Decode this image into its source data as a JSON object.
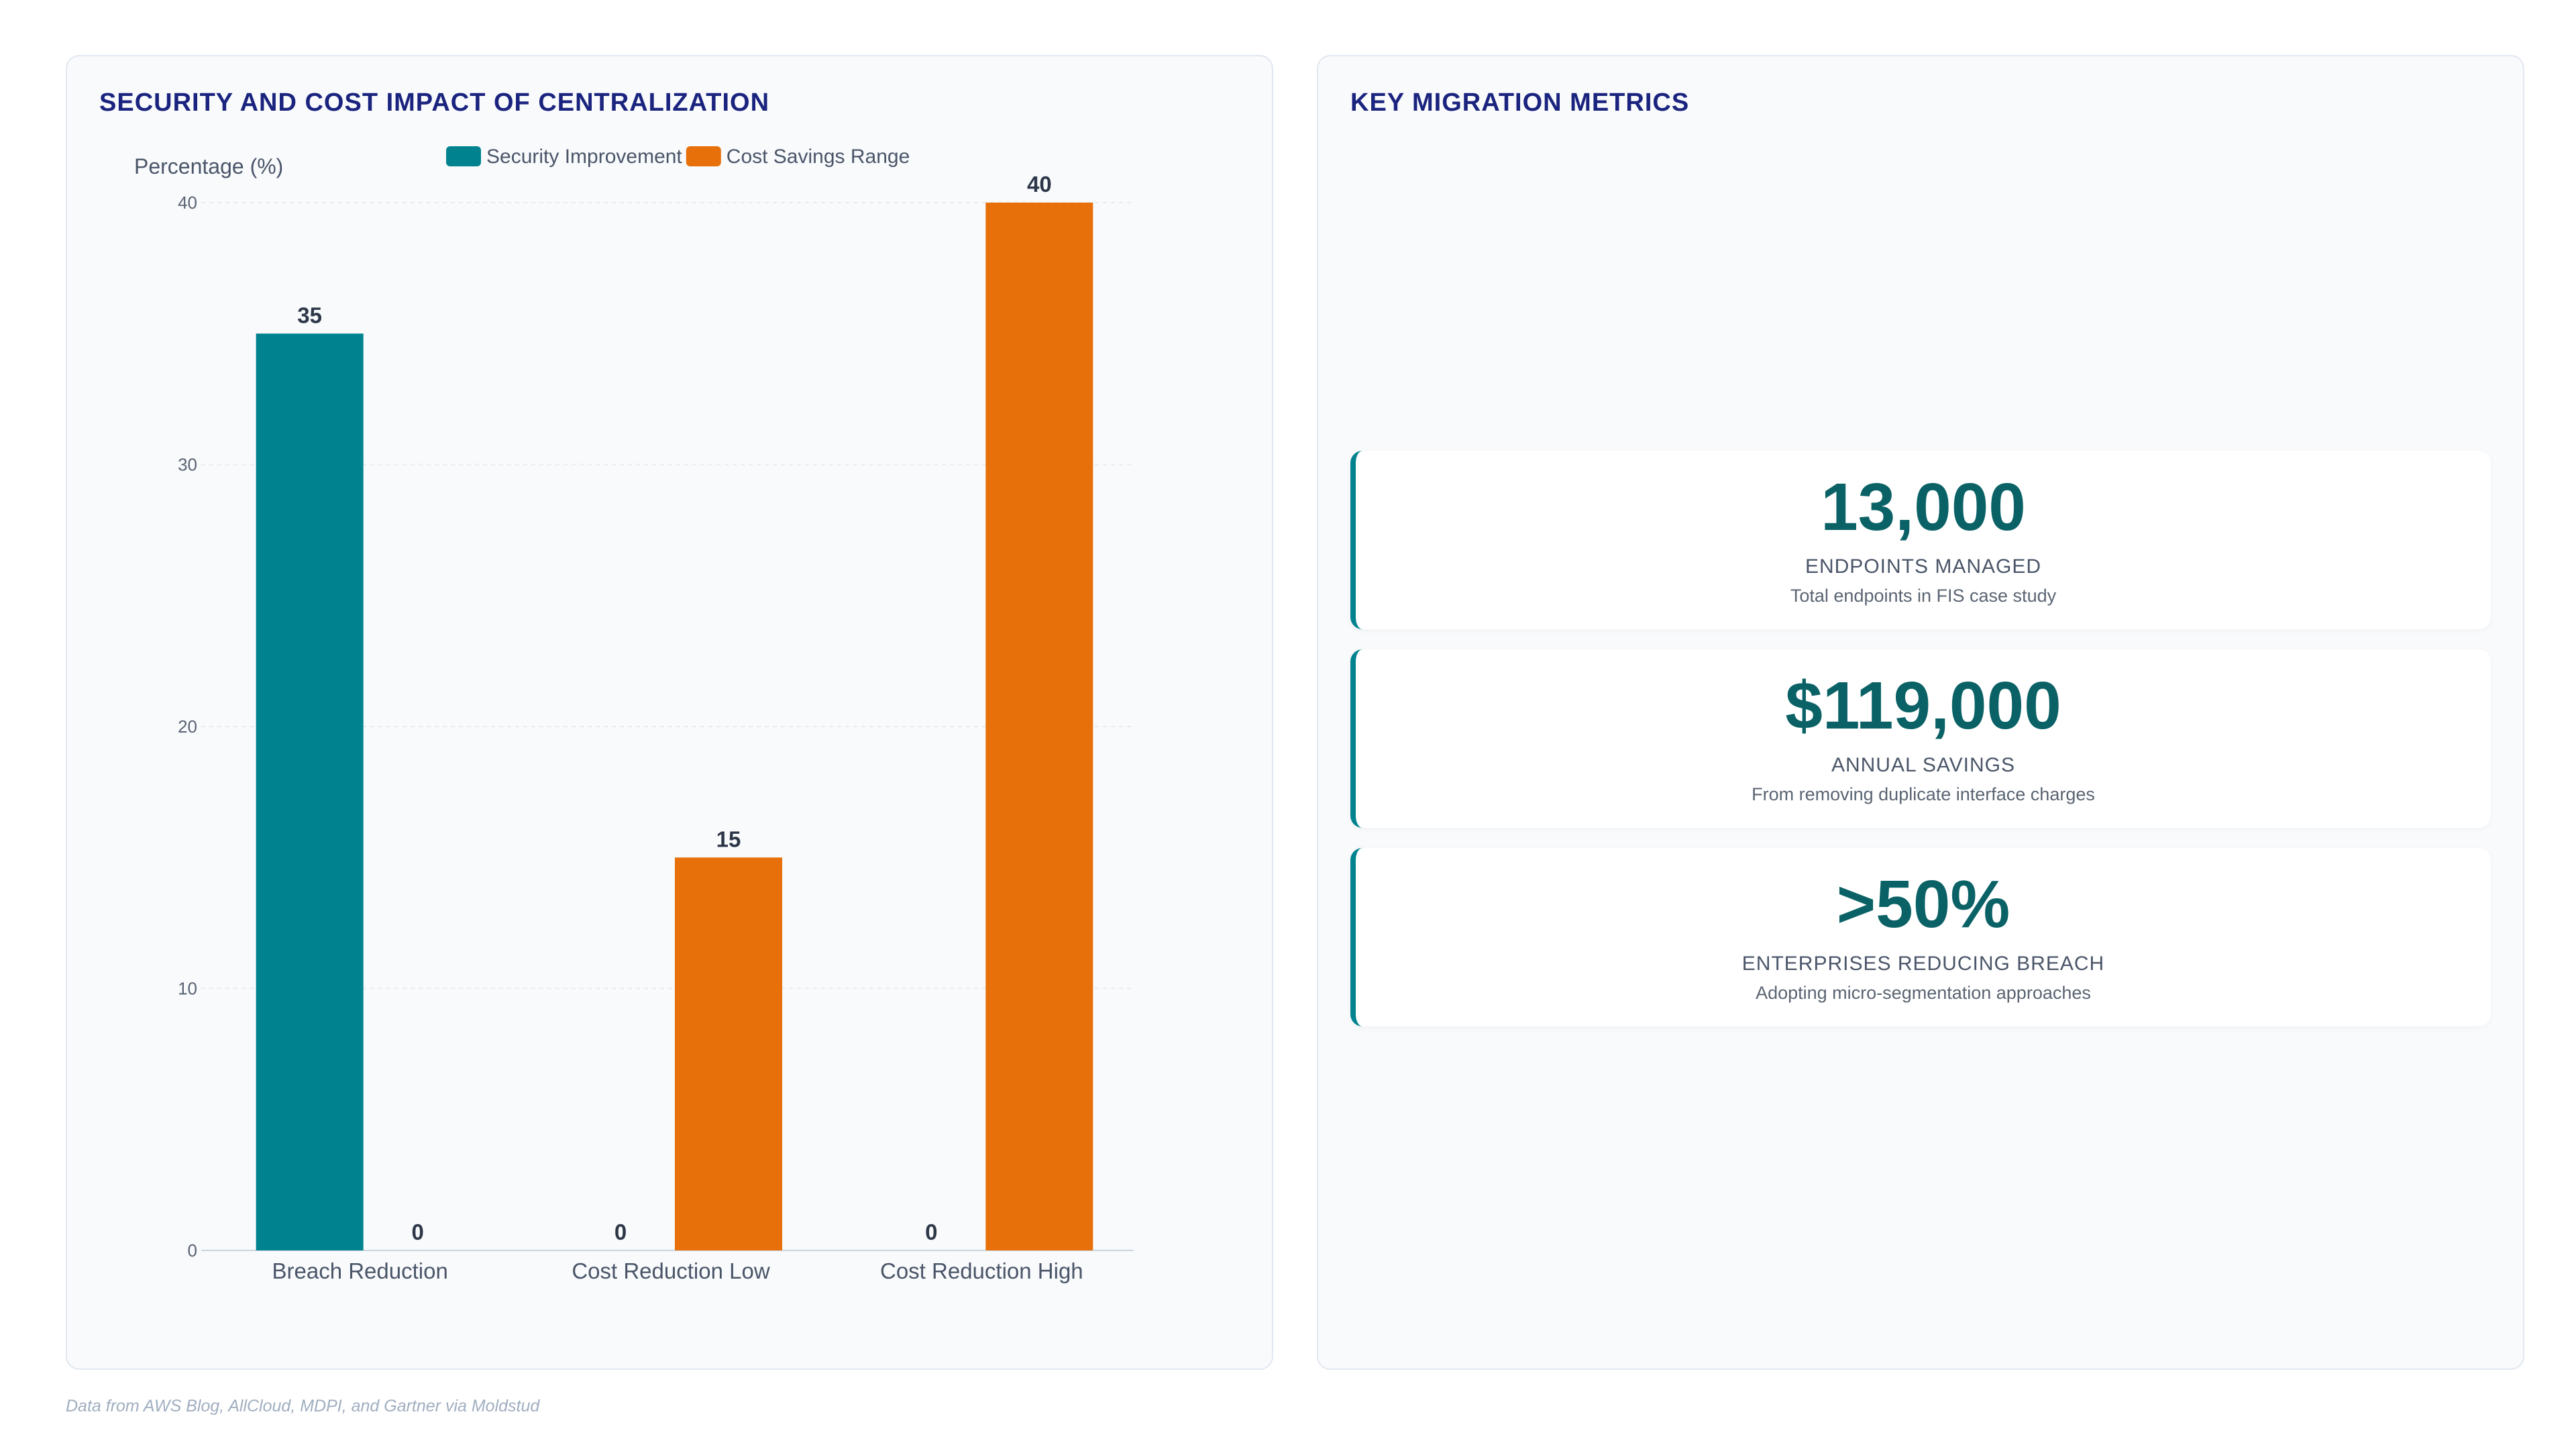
{
  "chart_panel": {
    "title": "SECURITY AND COST IMPACT OF CENTRALIZATION"
  },
  "chart_data": {
    "type": "bar",
    "categories": [
      "Breach Reduction",
      "Cost Reduction Low",
      "Cost Reduction High"
    ],
    "series": [
      {
        "name": "Security Improvement",
        "values": [
          35,
          0,
          0
        ],
        "color": "#00838f"
      },
      {
        "name": "Cost Savings Range",
        "values": [
          0,
          15,
          40
        ],
        "color": "#e8700a"
      }
    ],
    "ylabel": "Percentage (%)",
    "xlabel": "",
    "ylim": [
      0,
      40
    ],
    "yticks": [
      0,
      10,
      20,
      30,
      40
    ],
    "grid": true,
    "legend": "top-center",
    "data_labels": true
  },
  "metrics_panel": {
    "title": "KEY MIGRATION METRICS",
    "cards": [
      {
        "value": "13,000",
        "label": "ENDPOINTS MANAGED",
        "description": "Total endpoints in FIS case study"
      },
      {
        "value": "$119,000",
        "label": "ANNUAL SAVINGS",
        "description": "From removing duplicate interface charges"
      },
      {
        "value": ">50%",
        "label": "ENTERPRISES REDUCING BREACH",
        "description": "Adopting micro-segmentation approaches"
      }
    ]
  },
  "footnote": "Data from AWS Blog, AllCloud, MDPI, and Gartner via Moldstud",
  "colors": {
    "accent_teal": "#00838f",
    "accent_orange": "#e8700a",
    "title_navy": "#1a237e",
    "metric_value": "#0b6266"
  }
}
